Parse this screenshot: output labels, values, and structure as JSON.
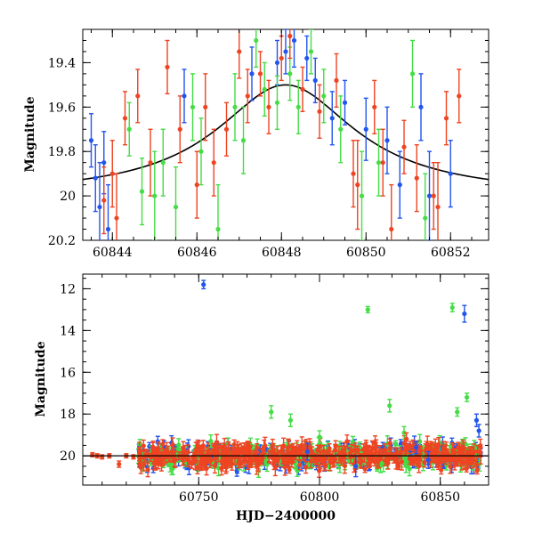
{
  "chart_data": [
    {
      "type": "scatter",
      "title": "",
      "xlabel": "",
      "ylabel": "Magnitude",
      "xlim": [
        60843.3,
        60852.9
      ],
      "ylim": [
        20.2,
        19.25
      ],
      "y_inverted": true,
      "xticks": [
        60844,
        60846,
        60848,
        60850,
        60852
      ],
      "yticks": [
        19.4,
        19.6,
        19.8,
        20,
        20.2
      ],
      "grid": false,
      "model_curve": {
        "color": "#000000",
        "peak_x": 60848.1,
        "peak_mag": 19.5,
        "baseline_mag": 20.0,
        "width": 2.0,
        "points": [
          [
            60843.3,
            19.951
          ],
          [
            60844.0,
            19.94
          ],
          [
            60845.0,
            19.91
          ],
          [
            60846.0,
            19.84
          ],
          [
            60847.0,
            19.68
          ],
          [
            60848.1,
            19.5
          ],
          [
            60849.0,
            19.63
          ],
          [
            60850.0,
            19.79
          ],
          [
            60851.0,
            19.9
          ],
          [
            60852.0,
            19.94
          ],
          [
            60852.9,
            19.96
          ]
        ]
      },
      "series": [
        {
          "color": "#2255ee",
          "points": [
            [
              60843.5,
              19.75,
              0.12
            ],
            [
              60843.6,
              19.92,
              0.15
            ],
            [
              60843.7,
              20.05,
              0.2
            ],
            [
              60843.8,
              19.85,
              0.14
            ],
            [
              60843.9,
              20.15,
              0.2
            ],
            [
              60847.3,
              19.45,
              0.12
            ],
            [
              60847.9,
              19.4,
              0.1
            ],
            [
              60848.1,
              19.35,
              0.1
            ],
            [
              60848.3,
              19.3,
              0.12
            ],
            [
              60848.6,
              19.38,
              0.1
            ],
            [
              60848.8,
              19.48,
              0.1
            ],
            [
              60849.2,
              19.65,
              0.12
            ],
            [
              60849.5,
              19.58,
              0.1
            ],
            [
              60850.0,
              19.7,
              0.14
            ],
            [
              60850.5,
              19.75,
              0.15
            ],
            [
              60850.8,
              19.95,
              0.15
            ],
            [
              60851.3,
              19.6,
              0.15
            ],
            [
              60851.5,
              20.0,
              0.2
            ],
            [
              60852.0,
              19.9,
              0.15
            ],
            [
              60845.7,
              19.55,
              0.12
            ]
          ]
        },
        {
          "color": "#44dd44",
          "points": [
            [
              60844.4,
              19.7,
              0.12
            ],
            [
              60844.7,
              19.98,
              0.15
            ],
            [
              60845.0,
              20.0,
              0.2
            ],
            [
              60845.2,
              19.85,
              0.15
            ],
            [
              60845.5,
              20.05,
              0.18
            ],
            [
              60846.1,
              19.8,
              0.15
            ],
            [
              60846.5,
              20.15,
              0.2
            ],
            [
              60846.9,
              19.6,
              0.15
            ],
            [
              60847.1,
              19.75,
              0.15
            ],
            [
              60847.4,
              19.3,
              0.12
            ],
            [
              60847.6,
              19.52,
              0.12
            ],
            [
              60847.9,
              19.58,
              0.12
            ],
            [
              60848.2,
              19.45,
              0.12
            ],
            [
              60848.4,
              19.6,
              0.12
            ],
            [
              60848.7,
              19.35,
              0.1
            ],
            [
              60849.0,
              19.55,
              0.12
            ],
            [
              60849.4,
              19.7,
              0.15
            ],
            [
              60849.9,
              20.0,
              0.2
            ],
            [
              60850.3,
              19.85,
              0.15
            ],
            [
              60851.1,
              19.45,
              0.15
            ],
            [
              60851.4,
              20.1,
              0.2
            ],
            [
              60845.9,
              19.6,
              0.15
            ]
          ]
        },
        {
          "color": "#ee4422",
          "points": [
            [
              60843.8,
              20.02,
              0.15
            ],
            [
              60844.0,
              19.9,
              0.15
            ],
            [
              60844.1,
              20.1,
              0.2
            ],
            [
              60844.3,
              19.65,
              0.12
            ],
            [
              60844.6,
              19.55,
              0.12
            ],
            [
              60844.9,
              19.85,
              0.15
            ],
            [
              60845.3,
              19.42,
              0.12
            ],
            [
              60845.6,
              19.7,
              0.15
            ],
            [
              60846.0,
              19.95,
              0.15
            ],
            [
              60846.2,
              19.6,
              0.15
            ],
            [
              60846.4,
              19.85,
              0.15
            ],
            [
              60846.7,
              19.7,
              0.12
            ],
            [
              60847.0,
              19.35,
              0.12
            ],
            [
              60847.2,
              19.55,
              0.12
            ],
            [
              60847.5,
              19.45,
              0.1
            ],
            [
              60847.7,
              19.6,
              0.12
            ],
            [
              60848.0,
              19.38,
              0.1
            ],
            [
              60848.2,
              19.28,
              0.1
            ],
            [
              60848.5,
              19.52,
              0.1
            ],
            [
              60848.9,
              19.62,
              0.12
            ],
            [
              60849.3,
              19.48,
              0.12
            ],
            [
              60849.7,
              19.9,
              0.15
            ],
            [
              60849.8,
              19.95,
              0.2
            ],
            [
              60850.2,
              19.6,
              0.12
            ],
            [
              60850.4,
              19.85,
              0.15
            ],
            [
              60850.6,
              20.15,
              0.2
            ],
            [
              60850.9,
              19.78,
              0.12
            ],
            [
              60851.2,
              19.92,
              0.15
            ],
            [
              60851.6,
              20.0,
              0.15
            ],
            [
              60851.7,
              20.05,
              0.2
            ],
            [
              60851.9,
              19.65,
              0.12
            ],
            [
              60852.2,
              19.55,
              0.12
            ]
          ]
        }
      ]
    },
    {
      "type": "scatter",
      "title": "",
      "xlabel": "HJD−2400000",
      "ylabel": "Magnitude",
      "xlim": [
        60702,
        60870
      ],
      "ylim": [
        21.4,
        11.3
      ],
      "y_inverted": true,
      "xticks": [
        60750,
        60800,
        60850
      ],
      "yticks": [
        12,
        14,
        16,
        18,
        20
      ],
      "grid": false,
      "baseline_mag": 20.0,
      "observed_range": [
        60725,
        60867
      ],
      "series": [
        {
          "color": "#2255ee",
          "points": [
            [
              60752,
              11.8,
              0.2
            ],
            [
              60860,
              13.2,
              0.4
            ],
            [
              60795,
              19.8,
              0.4
            ],
            [
              60815,
              20.5,
              0.5
            ],
            [
              60845,
              20.2,
              0.4
            ],
            [
              60865,
              18.3,
              0.3
            ],
            [
              60866,
              18.8,
              0.3
            ],
            [
              60840,
              19.6,
              0.3
            ]
          ]
        },
        {
          "color": "#44dd44",
          "points": [
            [
              60820,
              13.0,
              0.15
            ],
            [
              60855,
              12.9,
              0.2
            ],
            [
              60861,
              17.2,
              0.2
            ],
            [
              60780,
              17.9,
              0.3
            ],
            [
              60829,
              17.6,
              0.3
            ],
            [
              60857,
              17.9,
              0.2
            ],
            [
              60788,
              18.3,
              0.3
            ],
            [
              60755,
              19.3,
              0.3
            ],
            [
              60800,
              19.1,
              0.3
            ],
            [
              60835,
              18.9,
              0.3
            ]
          ]
        },
        {
          "color": "#ee4422",
          "points": [
            [
              60706,
              19.95,
              0.1
            ],
            [
              60708,
              20.0,
              0.1
            ],
            [
              60710,
              20.05,
              0.1
            ],
            [
              60713,
              20.0,
              0.1
            ],
            [
              60717,
              20.4,
              0.15
            ],
            [
              60720,
              20.0,
              0.1
            ],
            [
              60723,
              20.05,
              0.1
            ],
            [
              60836,
              19.2,
              0.3
            ],
            [
              60848,
              19.5,
              0.3
            ]
          ]
        }
      ]
    }
  ]
}
